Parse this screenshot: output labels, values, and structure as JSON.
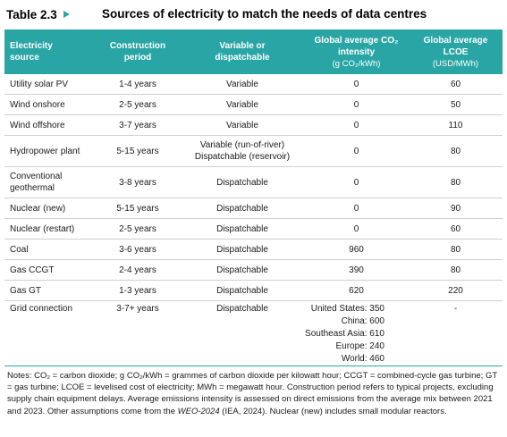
{
  "table": {
    "number": "Table 2.3",
    "title": "Sources of electricity to match the needs of data centres",
    "headers": {
      "source": [
        "Electricity",
        "source"
      ],
      "construction": [
        "Construction",
        "period"
      ],
      "variable": [
        "Variable or",
        "dispatchable"
      ],
      "co2": [
        "Global average CO₂",
        "intensity"
      ],
      "co2_unit": "(g CO₂/kWh)",
      "lcoe": [
        "Global average",
        "LCOE"
      ],
      "lcoe_unit": "(USD/MWh)"
    },
    "rows": [
      {
        "source": [
          "Utility solar PV"
        ],
        "period": "1-4 years",
        "type": [
          "Variable"
        ],
        "co2": "0",
        "lcoe": "60"
      },
      {
        "source": [
          "Wind onshore"
        ],
        "period": "2-5 years",
        "type": [
          "Variable"
        ],
        "co2": "0",
        "lcoe": "50"
      },
      {
        "source": [
          "Wind offshore"
        ],
        "period": "3-7 years",
        "type": [
          "Variable"
        ],
        "co2": "0",
        "lcoe": "110"
      },
      {
        "source": [
          "Hydropower plant"
        ],
        "period": "5-15 years",
        "type": [
          "Variable (run-of-river)",
          "Dispatchable (reservoir)"
        ],
        "co2": "0",
        "lcoe": "80"
      },
      {
        "source": [
          "Conventional",
          "geothermal"
        ],
        "period": "3-8 years",
        "type": [
          "Dispatchable"
        ],
        "co2": "0",
        "lcoe": "80"
      },
      {
        "source": [
          "Nuclear (new)"
        ],
        "period": "5-15 years",
        "type": [
          "Dispatchable"
        ],
        "co2": "0",
        "lcoe": "90"
      },
      {
        "source": [
          "Nuclear (restart)"
        ],
        "period": "2-5 years",
        "type": [
          "Dispatchable"
        ],
        "co2": "0",
        "lcoe": "60"
      },
      {
        "source": [
          "Coal"
        ],
        "period": "3-6 years",
        "type": [
          "Dispatchable"
        ],
        "co2": "960",
        "lcoe": "80"
      },
      {
        "source": [
          "Gas CCGT"
        ],
        "period": "2-4 years",
        "type": [
          "Dispatchable"
        ],
        "co2": "390",
        "lcoe": "80"
      },
      {
        "source": [
          "Gas GT"
        ],
        "period": "1-3 years",
        "type": [
          "Dispatchable"
        ],
        "co2": "620",
        "lcoe": "220"
      }
    ],
    "grid_row": {
      "source": "Grid connection",
      "period": "3-7+ years",
      "type": "Dispatchable",
      "co2": [
        "United States: 350",
        "China: 600",
        "Southeast Asia: 610",
        "Europe: 240",
        "World: 460"
      ],
      "lcoe": "-"
    }
  },
  "notes": {
    "text_before": "Notes: CO₂ = carbon dioxide; g CO₂/kWh = grammes of carbon dioxide per kilowatt hour; CCGT = combined-cycle gas turbine; GT = gas turbine; LCOE = levelised cost of electricity; MWh = megawatt hour. Construction period refers to typical projects, excluding supply chain equipment delays. Average emissions intensity is assessed on direct emissions from the average mix between 2021 and 2023. Other assumptions come from the ",
    "text_italic": "WEO-2024",
    "text_after": " (IEA, 2024). Nuclear (new) includes small modular reactors."
  },
  "colors": {
    "accent": "#2aa5a5",
    "row_border": "#cfcfcf"
  }
}
